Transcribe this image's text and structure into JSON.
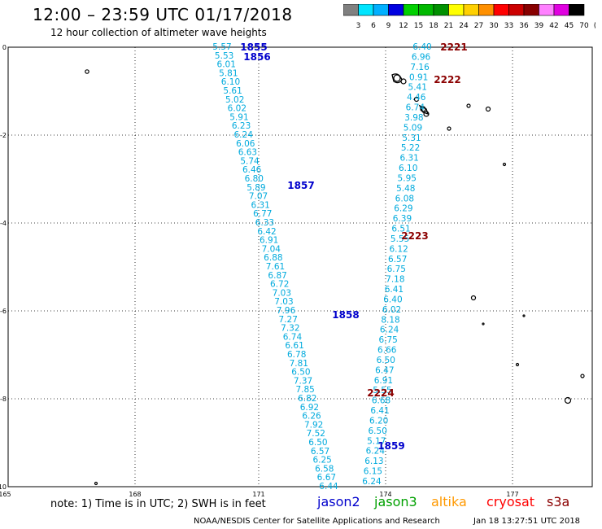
{
  "title": "12:00 – 23:59 UTC 01/17/2018",
  "subtitle": "12 hour collection of altimeter wave heights",
  "colorbar": {
    "colors": [
      "#808080",
      "#00e5ff",
      "#00b0ff",
      "#0000e0",
      "#00d000",
      "#00b800",
      "#009000",
      "#ffff00",
      "#ffd000",
      "#ff9000",
      "#ff0000",
      "#cc0000",
      "#880000",
      "#ff80ff",
      "#e000e0",
      "#000000"
    ],
    "labels": [
      "3",
      "6",
      "9",
      "12",
      "15",
      "18",
      "21",
      "24",
      "27",
      "30",
      "33",
      "36",
      "39",
      "42",
      "45",
      "70",
      "(ft)"
    ]
  },
  "map": {
    "x_ticks": [
      "165",
      "168",
      "171",
      "174",
      "177"
    ],
    "y_ticks": [
      "0",
      "-2",
      "-4",
      "-6",
      "-8",
      "-10"
    ]
  },
  "track_a": [
    "5.57",
    "5.53",
    "6.01",
    "5.81",
    "6.10",
    "5.61",
    "5.02",
    "6.02",
    "5.91",
    "6.23",
    "6.24",
    "6.06",
    "6.63",
    "5.74",
    "6.46",
    "6.80",
    "5.89",
    "7.07",
    "6.31",
    "6.77",
    "6.33",
    "6.42",
    "6.91",
    "7.04",
    "6.88",
    "7.61",
    "6.87",
    "6.72",
    "7.03",
    "7.03",
    "7.96",
    "7.27",
    "7.32",
    "6.74",
    "6.61",
    "6.78",
    "7.81",
    "6.50",
    "7.37",
    "7.85",
    "6.82",
    "6.92",
    "6.26",
    "7.92",
    "7.52",
    "6.50",
    "6.57",
    "6.25",
    "6.58",
    "6.67",
    "6.44"
  ],
  "track_b": [
    "6.40",
    "6.96",
    "7.16",
    "0.91",
    "5.41",
    "4.46",
    "6.74",
    "3.98",
    "5.09",
    "5.31",
    "5.22",
    "6.31",
    "6.10",
    "5.95",
    "5.48",
    "6.08",
    "6.29",
    "6.39",
    "6.51",
    "5.55",
    "6.12",
    "6.57",
    "6.75",
    "7.18",
    "6.41",
    "6.40",
    "6.02",
    "8.18",
    "6.24",
    "6.75",
    "6.66",
    "6.50",
    "6.47",
    "6.91",
    "5.55",
    "6.68",
    "6.41",
    "6.20",
    "6.50",
    "5.17",
    "6.24",
    "6.13",
    "6.15",
    "6.24"
  ],
  "pass_labels": [
    {
      "text": "1855",
      "color": "#0000cc"
    },
    {
      "text": "1856",
      "color": "#0000cc"
    },
    {
      "text": "1857",
      "color": "#0000cc"
    },
    {
      "text": "1858",
      "color": "#0000cc"
    },
    {
      "text": "1859",
      "color": "#0000cc"
    },
    {
      "text": "2221",
      "color": "#8b0000"
    },
    {
      "text": "2222",
      "color": "#8b0000"
    },
    {
      "text": "2223",
      "color": "#8b0000"
    },
    {
      "text": "2224",
      "color": "#8b0000"
    }
  ],
  "note": "note: 1) Time is in UTC; 2) SWH is in feet",
  "legend": [
    {
      "text": "jason2",
      "color": "#0000cc"
    },
    {
      "text": "jason3",
      "color": "#00a000"
    },
    {
      "text": "altika",
      "color": "#ff9900"
    },
    {
      "text": "cryosat",
      "color": "#ff0000"
    },
    {
      "text": "s3a",
      "color": "#8b0000"
    }
  ],
  "footer_left": "NOAA/NESDIS Center for Satellite Applications and Research",
  "footer_right": "Jan 18 13:27:51 UTC 2018"
}
